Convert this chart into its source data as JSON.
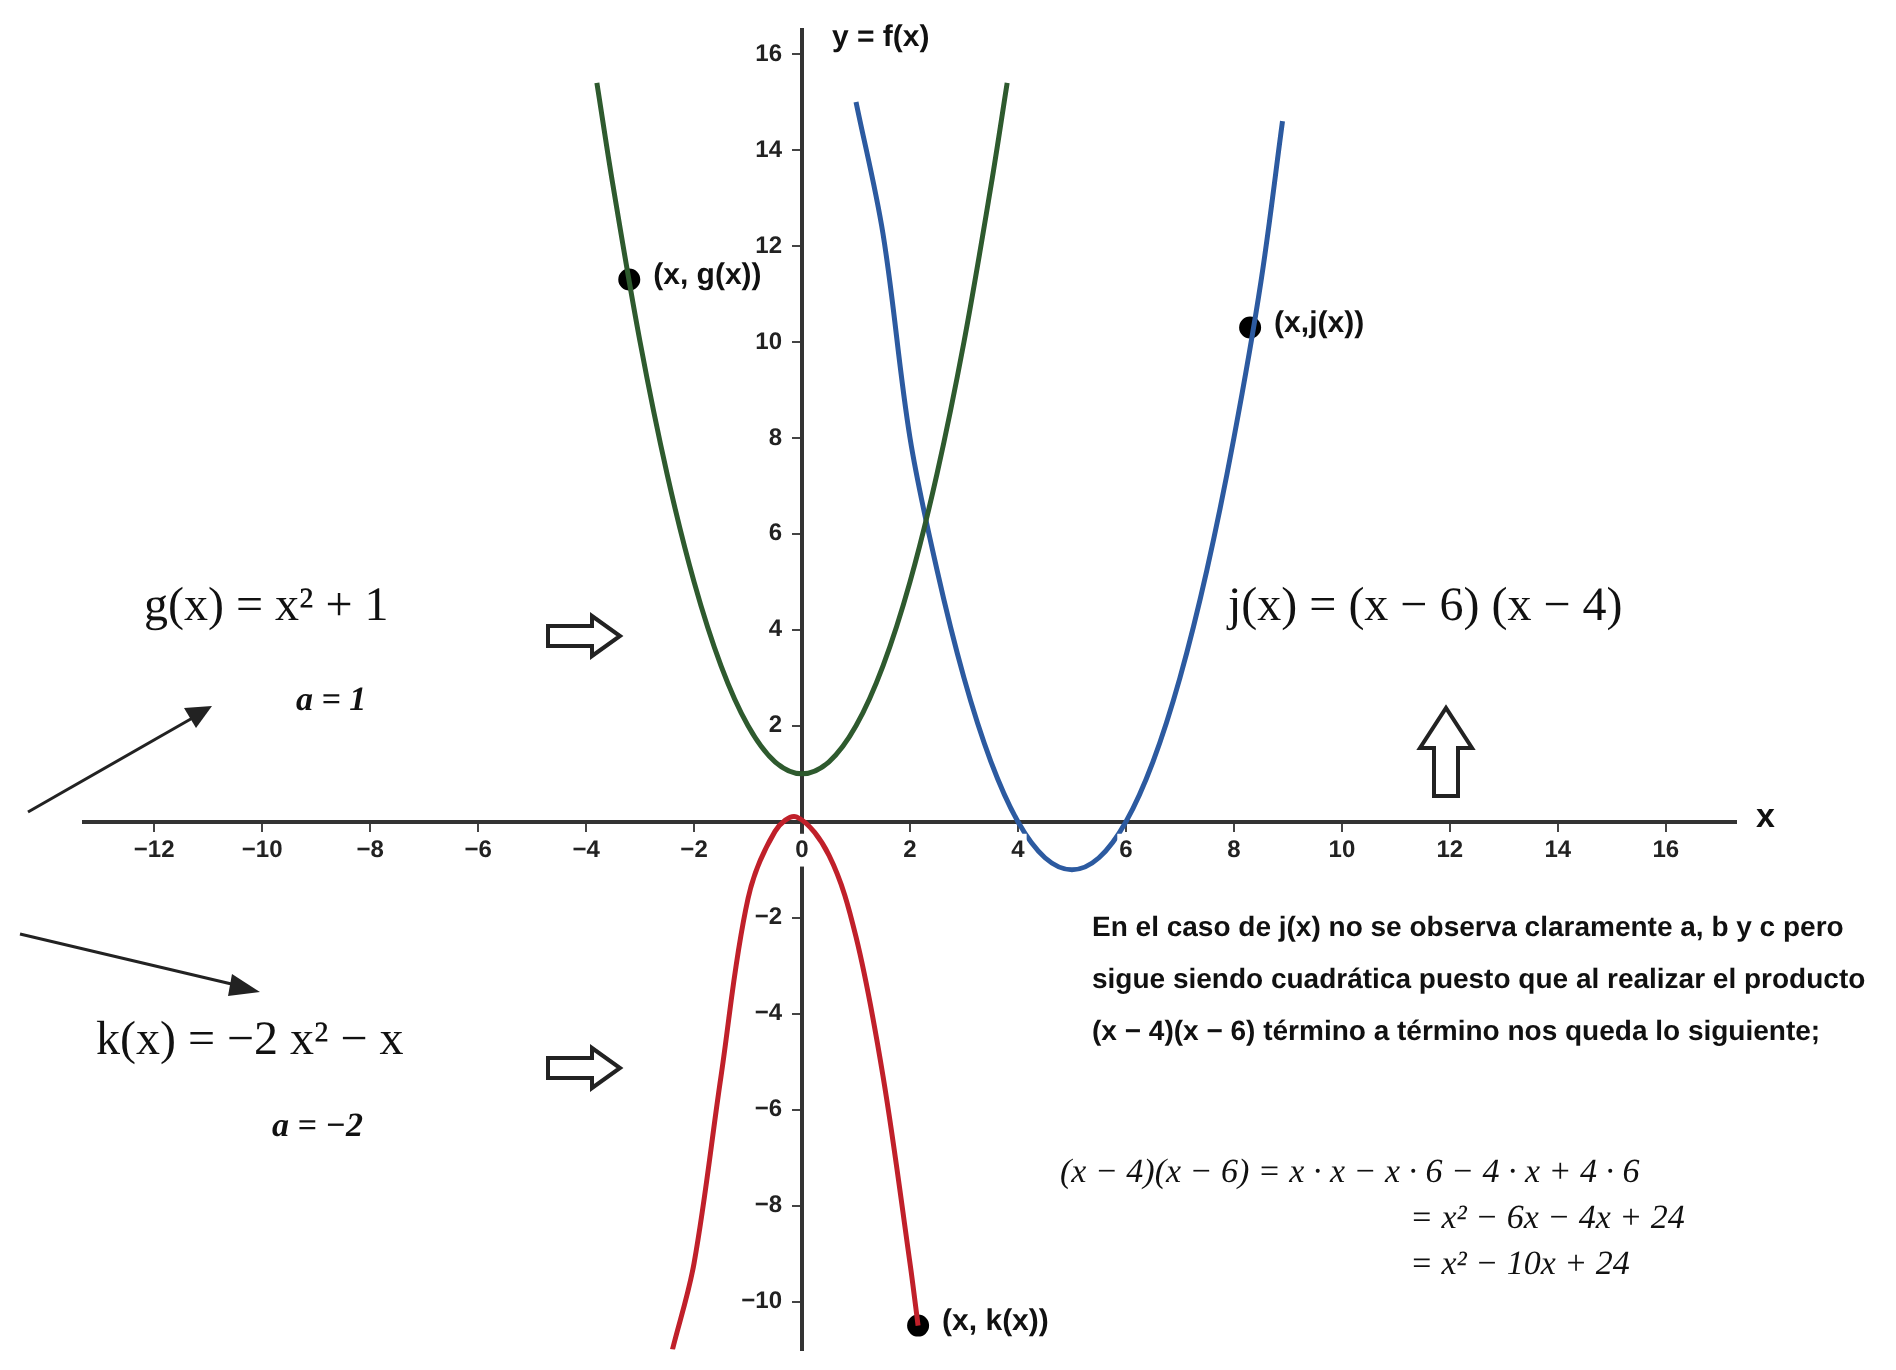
{
  "chart_data": {
    "type": "line",
    "xlabel": "x",
    "xlim": [
      -13.3,
      17.3
    ],
    "ylim": [
      -11,
      16.5
    ],
    "xticks": [
      -12,
      -10,
      -8,
      -6,
      -4,
      -2,
      0,
      2,
      4,
      6,
      8,
      10,
      12,
      14,
      16
    ],
    "yticks": [
      -10,
      -8,
      -6,
      -4,
      -2,
      2,
      4,
      6,
      8,
      10,
      12,
      14,
      16
    ],
    "grid": false,
    "legend": false,
    "marker": "none",
    "series": [
      {
        "type": "line",
        "color": "#2e5a2e",
        "x": [
          -3.8,
          -3.5,
          -3,
          -2.5,
          -2,
          -1.5,
          -1,
          -0.5,
          0,
          0.5,
          1,
          1.5,
          2,
          2.5,
          3,
          3.5,
          3.8
        ],
        "values": [
          15.4,
          13.25,
          10,
          7.25,
          5,
          3.25,
          2,
          1.25,
          1,
          1.25,
          2,
          3.25,
          5,
          7.25,
          10,
          13.25,
          15.4
        ]
      },
      {
        "type": "line",
        "color": "#2c5aa0",
        "x": [
          1,
          1.5,
          2,
          2.5,
          3,
          3.5,
          4,
          4.5,
          5,
          5.5,
          6,
          6.5,
          7,
          7.5,
          8,
          8.5,
          8.9
        ],
        "values": [
          15,
          12.25,
          8,
          5.25,
          3,
          1.25,
          0,
          -0.75,
          -1,
          -0.75,
          0,
          1.25,
          3,
          5.25,
          8,
          11.25,
          14.6
        ]
      },
      {
        "type": "line",
        "color": "#c0202a",
        "x": [
          -2.4,
          -2,
          -1.5,
          -1,
          -0.5,
          -0.1,
          0.5,
          1,
          1.5,
          2,
          2.15
        ],
        "values": [
          -11,
          -9.2,
          -5.3,
          -1.6,
          -0.2,
          0.1,
          -0.7,
          -2.4,
          -5.3,
          -9.2,
          -10.5
        ]
      },
      {
        "type": "scatter",
        "marker": "circle",
        "color": "#000000",
        "x": [
          -3.2,
          8.3,
          2.15
        ],
        "values": [
          11.3,
          10.3,
          -10.5
        ]
      }
    ],
    "annotations": [
      {
        "text": "(x, g(x))",
        "x": -3.2,
        "y": 11.3
      },
      {
        "text": "(x,j(x))",
        "x": 8.3,
        "y": 10.3
      },
      {
        "text": "(x, k(x))",
        "x": 2.15,
        "y": -10.5
      },
      "y = f(x)",
      "g(x) = x² + 1",
      "a = 1",
      "j(x) = (x − 6) (x − 4)",
      "k(x) = −2 x² − x",
      "a = −2",
      "En el caso de j(x) no se observa claramente a, b y c pero sigue siendo cuadrática puesto que al realizar el producto (x − 4)(x − 6) término a término nos queda lo siguiente;",
      "(x − 4)(x − 6) = x · x − x · 6 − 4 · x + 4 · 6",
      "= x² − 6x − 4x + 24",
      "= x² − 10x + 24"
    ]
  }
}
